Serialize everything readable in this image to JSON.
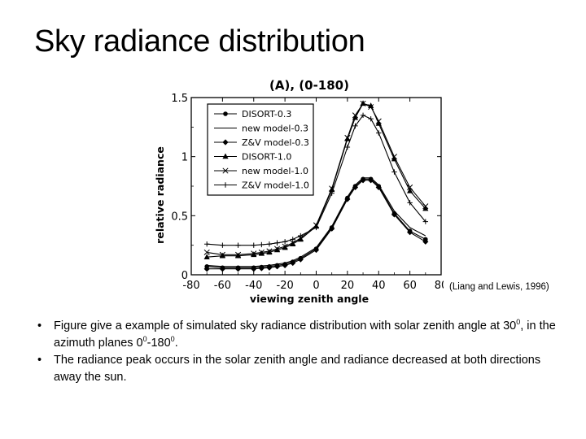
{
  "slide": {
    "title": "Sky radiance distribution",
    "citation": "(Liang and Lewis, 1996)",
    "bullets": [
      {
        "bullet": "•",
        "parts": [
          "Figure give a example of simulated sky radiance distribution with solar zenith angle at 30",
          "0",
          ", in the azimuth planes 0",
          "0",
          "-180",
          "0",
          "."
        ]
      },
      {
        "bullet": "•",
        "parts": [
          "The radiance peak occurs in the solar zenith angle and radiance decreased at both directions away the sun."
        ]
      }
    ]
  },
  "chart_data": {
    "type": "line",
    "title": "(A),  (0-180)",
    "xlabel": "viewing  zenith  angle",
    "ylabel": "relative  radiance",
    "xlim": [
      -80,
      80
    ],
    "ylim": [
      0,
      1.5
    ],
    "xticks": [
      -80,
      -60,
      -40,
      -20,
      0,
      20,
      40,
      60,
      80
    ],
    "yticks": [
      0,
      0.5,
      1,
      1.5
    ],
    "xtick_labels": [
      "-80",
      "-60",
      "-40",
      "-20",
      "0",
      "20",
      "40",
      "60",
      "80"
    ],
    "ytick_labels": [
      "0",
      "0.5",
      "1",
      "1.5"
    ],
    "grid": false,
    "legend_position": "top-left",
    "x": [
      -70,
      -60,
      -50,
      -40,
      -35,
      -30,
      -25,
      -20,
      -15,
      -10,
      0,
      10,
      20,
      25,
      30,
      35,
      40,
      50,
      60,
      70
    ],
    "series": [
      {
        "name": "DISORT-0.3",
        "marker": "circle",
        "values": [
          0.07,
          0.06,
          0.06,
          0.06,
          0.065,
          0.07,
          0.08,
          0.09,
          0.11,
          0.14,
          0.22,
          0.4,
          0.65,
          0.75,
          0.81,
          0.81,
          0.75,
          0.52,
          0.37,
          0.3
        ]
      },
      {
        "name": "new model-0.3",
        "marker": "line",
        "values": [
          0.08,
          0.07,
          0.07,
          0.07,
          0.075,
          0.08,
          0.09,
          0.1,
          0.12,
          0.15,
          0.23,
          0.41,
          0.66,
          0.76,
          0.82,
          0.82,
          0.76,
          0.54,
          0.4,
          0.33
        ]
      },
      {
        "name": "Z&V model-0.3",
        "marker": "diamond",
        "values": [
          0.05,
          0.05,
          0.05,
          0.05,
          0.055,
          0.06,
          0.07,
          0.08,
          0.1,
          0.13,
          0.21,
          0.39,
          0.64,
          0.74,
          0.8,
          0.8,
          0.74,
          0.51,
          0.36,
          0.28
        ]
      },
      {
        "name": "DISORT-1.0",
        "marker": "triangle",
        "values": [
          0.15,
          0.16,
          0.16,
          0.17,
          0.18,
          0.19,
          0.21,
          0.23,
          0.26,
          0.3,
          0.41,
          0.72,
          1.15,
          1.33,
          1.45,
          1.43,
          1.28,
          0.98,
          0.71,
          0.56
        ]
      },
      {
        "name": "new model-1.0",
        "marker": "x",
        "values": [
          0.19,
          0.17,
          0.17,
          0.18,
          0.19,
          0.2,
          0.22,
          0.24,
          0.27,
          0.31,
          0.42,
          0.73,
          1.16,
          1.35,
          1.45,
          1.42,
          1.3,
          1.0,
          0.74,
          0.58
        ]
      },
      {
        "name": "Z&V model-1.0",
        "marker": "plus",
        "values": [
          0.26,
          0.25,
          0.25,
          0.25,
          0.255,
          0.26,
          0.27,
          0.28,
          0.3,
          0.33,
          0.4,
          0.69,
          1.08,
          1.26,
          1.35,
          1.32,
          1.2,
          0.87,
          0.61,
          0.45
        ]
      }
    ]
  }
}
